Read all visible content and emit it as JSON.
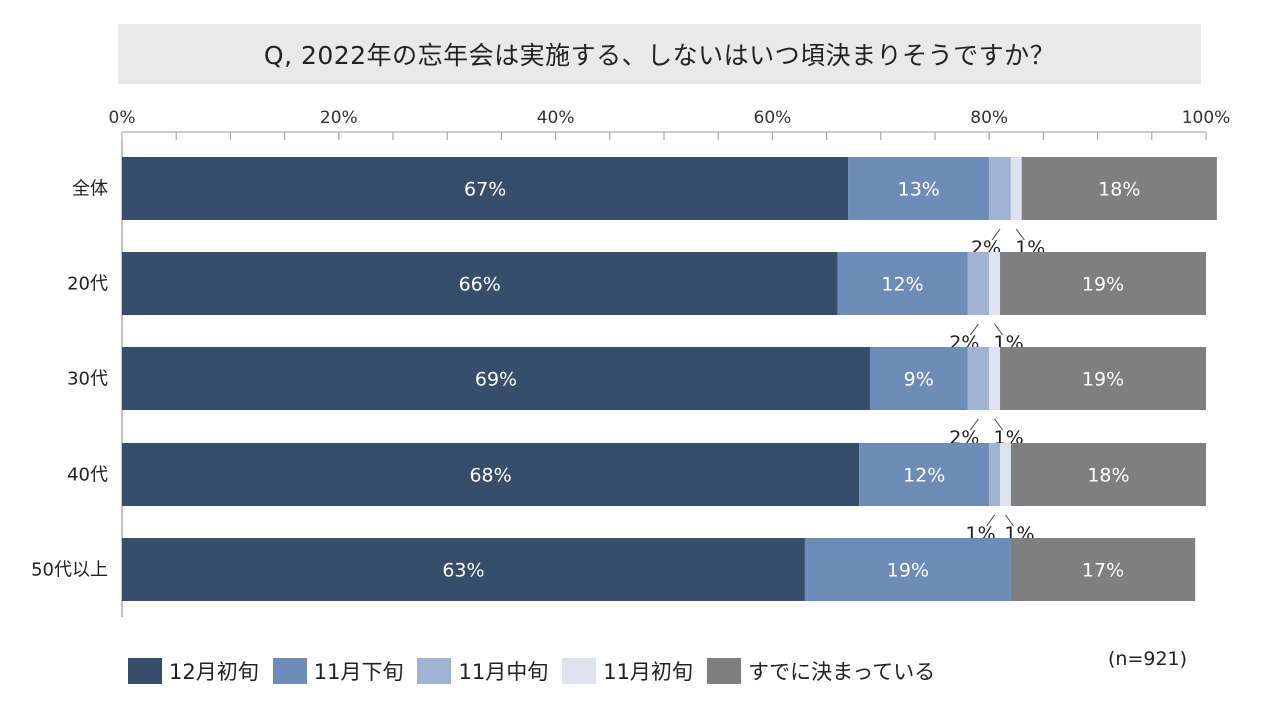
{
  "chart_data": {
    "type": "bar",
    "orientation": "horizontal-stacked-100",
    "title": "Q, 2022年の忘年会は実施する、しないはいつ頃決まりそうですか？",
    "note": "(n=921)",
    "x_ticks": [
      "0%",
      "20%",
      "40%",
      "60%",
      "80%",
      "100%"
    ],
    "xlim": [
      0,
      100
    ],
    "categories": [
      "全体",
      "20代",
      "30代",
      "40代",
      "50代以上"
    ],
    "series": [
      {
        "name": "12月初旬",
        "color": "#374d6c",
        "values": [
          67,
          66,
          69,
          68,
          63
        ],
        "labels": [
          "67%",
          "66%",
          "69%",
          "68%",
          "63%"
        ]
      },
      {
        "name": "11月下旬",
        "color": "#6e8cb8",
        "values": [
          13,
          12,
          9,
          12,
          19
        ],
        "labels": [
          "13%",
          "12%",
          "9%",
          "12%",
          "19%"
        ]
      },
      {
        "name": "11月中旬",
        "color": "#a1b3d2",
        "values": [
          2,
          2,
          2,
          1,
          0
        ],
        "labels": [
          "2%",
          "2%",
          "2%",
          "1%",
          ""
        ]
      },
      {
        "name": "11月初旬",
        "color": "#dde3ef",
        "values": [
          1,
          1,
          1,
          1,
          0
        ],
        "labels": [
          "1%",
          "1%",
          "1%",
          "1%",
          ""
        ]
      },
      {
        "name": "すでに決まっている",
        "color": "#7f7f7f",
        "values": [
          18,
          19,
          19,
          18,
          17
        ],
        "labels": [
          "18%",
          "19%",
          "19%",
          "18%",
          "17%"
        ]
      }
    ],
    "legend_position": "bottom"
  }
}
